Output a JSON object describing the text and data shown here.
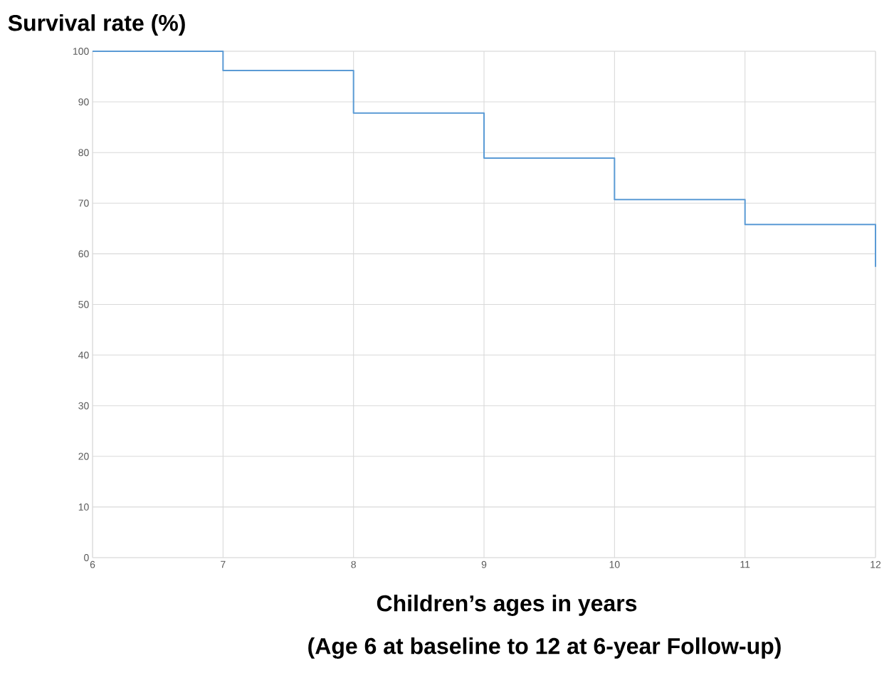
{
  "chart_data": {
    "type": "step",
    "ylabel": "Survival rate (%)",
    "xlabel": "Children’s ages in years",
    "annotations": [
      "(Age 6 at baseline to 12 at 6-year Follow-up)"
    ],
    "x": [
      6,
      7,
      8,
      9,
      10,
      11,
      12
    ],
    "series": [
      {
        "color": "#5b9bd5",
        "values": [
          100,
          96.2,
          87.8,
          78.9,
          70.7,
          65.8,
          57.4
        ]
      }
    ],
    "xlim": [
      6,
      12
    ],
    "xticks": [
      6,
      7,
      8,
      9,
      10,
      11,
      12
    ],
    "ylim": [
      0,
      100
    ],
    "yticks": [
      0,
      10,
      20,
      30,
      40,
      50,
      60,
      70,
      80,
      90,
      100
    ],
    "grid": true,
    "marker": "none"
  }
}
